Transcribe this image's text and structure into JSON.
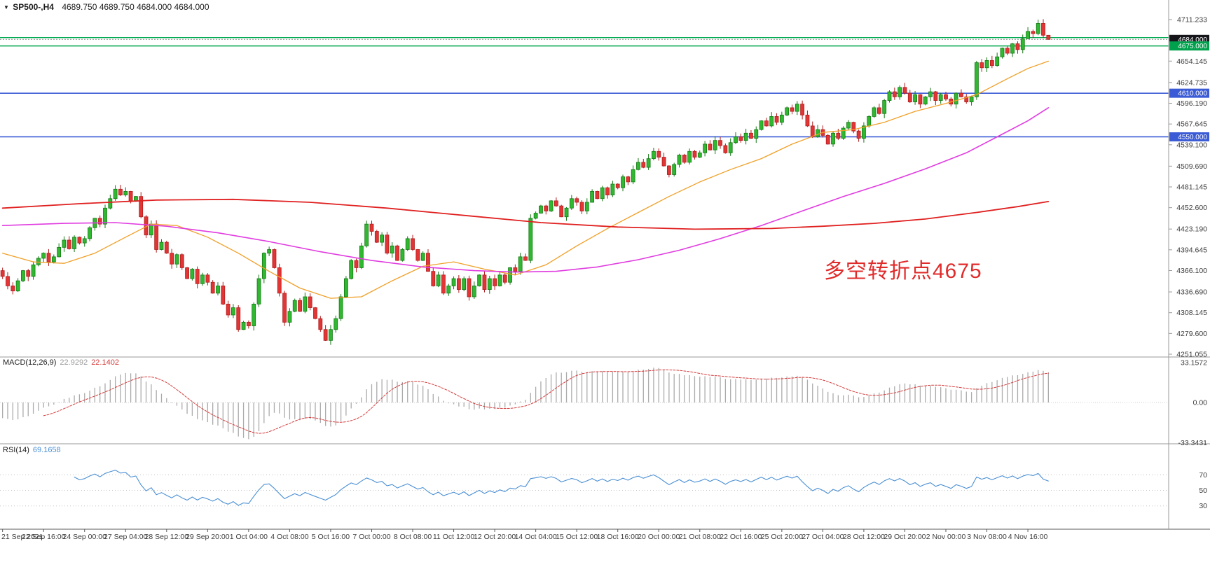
{
  "header": {
    "symbol_timeframe": "SP500-,H4",
    "ohlc_text": "4689.750 4689.750 4684.000 4684.000"
  },
  "annotation": {
    "text": "多空转折点4675",
    "color": "#e02b2b"
  },
  "chart_data": {
    "type": "candlestick",
    "symbol": "SP500-",
    "timeframe": "H4",
    "current_bar": {
      "open": 4689.75,
      "high": 4689.75,
      "low": 4684.0,
      "close": 4684.0
    },
    "price_axis": {
      "ticks": [
        4711.233,
        4654.145,
        4624.735,
        4596.19,
        4567.645,
        4539.1,
        4509.69,
        4481.145,
        4452.6,
        4423.19,
        4394.645,
        4366.1,
        4336.69,
        4308.145,
        4279.6,
        4251.055
      ],
      "y_top_price": 4711.233,
      "y_bottom_price": 4251.055
    },
    "hlines": [
      {
        "price": 4686.5,
        "color": "#00a84f",
        "width": 1.4
      },
      {
        "price": 4675.0,
        "color": "#00a84f",
        "width": 1.4
      },
      {
        "price": 4610.0,
        "color": "#3b5bd6",
        "width": 1.6
      },
      {
        "price": 4550.0,
        "color": "#3b5bd6",
        "width": 1.6
      }
    ],
    "bid_line": {
      "price": 4684.0,
      "color": "#8a8a8a"
    },
    "price_markers": [
      {
        "price": 4684.0,
        "label": "4684.000",
        "bg": "#15151a"
      },
      {
        "price": 4675.0,
        "label": "4675.000",
        "bg": "#00a04d"
      },
      {
        "price": 4610.0,
        "label": "4610.000",
        "bg": "#3b5bd6"
      },
      {
        "price": 4550.0,
        "label": "4550.000",
        "bg": "#3b5bd6"
      }
    ],
    "time_axis": {
      "label_step": 8,
      "labels": [
        "21 Sep 2021",
        "22 Sep 16:00",
        "24 Sep 00:00",
        "27 Sep 04:00",
        "28 Sep 12:00",
        "29 Sep 20:00",
        "1 Oct 04:00",
        "4 Oct 08:00",
        "5 Oct 16:00",
        "7 Oct 00:00",
        "8 Oct 08:00",
        "11 Oct 12:00",
        "12 Oct 20:00",
        "14 Oct 04:00",
        "15 Oct 12:00",
        "18 Oct 16:00",
        "20 Oct 00:00",
        "21 Oct 08:00",
        "22 Oct 16:00",
        "25 Oct 20:00",
        "27 Oct 04:00",
        "28 Oct 12:00",
        "29 Oct 20:00",
        "2 Nov 00:00",
        "3 Nov 08:00",
        "4 Nov 16:00"
      ]
    },
    "closes": [
      4358,
      4345,
      4338,
      4352,
      4366,
      4358,
      4374,
      4383,
      4390,
      4378,
      4385,
      4398,
      4408,
      4396,
      4412,
      4404,
      4410,
      4425,
      4438,
      4430,
      4452,
      4465,
      4478,
      4470,
      4475,
      4462,
      4468,
      4440,
      4415,
      4430,
      4395,
      4405,
      4390,
      4375,
      4388,
      4370,
      4355,
      4368,
      4348,
      4360,
      4350,
      4335,
      4345,
      4320,
      4305,
      4315,
      4285,
      4295,
      4290,
      4320,
      4355,
      4390,
      4395,
      4370,
      4335,
      4295,
      4310,
      4325,
      4310,
      4330,
      4315,
      4300,
      4285,
      4270,
      4285,
      4300,
      4330,
      4355,
      4380,
      4370,
      4400,
      4430,
      4420,
      4405,
      4415,
      4390,
      4400,
      4380,
      4395,
      4410,
      4395,
      4380,
      4390,
      4365,
      4345,
      4360,
      4335,
      4345,
      4355,
      4340,
      4355,
      4330,
      4345,
      4360,
      4340,
      4355,
      4345,
      4360,
      4350,
      4370,
      4365,
      4385,
      4380,
      4438,
      4445,
      4455,
      4448,
      4462,
      4455,
      4440,
      4452,
      4465,
      4460,
      4448,
      4460,
      4475,
      4465,
      4480,
      4470,
      4485,
      4480,
      4495,
      4488,
      4505,
      4515,
      4508,
      4520,
      4530,
      4522,
      4510,
      4498,
      4512,
      4525,
      4515,
      4530,
      4522,
      4528,
      4540,
      4532,
      4545,
      4538,
      4528,
      4542,
      4550,
      4545,
      4555,
      4548,
      4560,
      4572,
      4565,
      4578,
      4570,
      4580,
      4590,
      4585,
      4595,
      4580,
      4565,
      4550,
      4560,
      4552,
      4540,
      4555,
      4548,
      4562,
      4570,
      4558,
      4548,
      4565,
      4578,
      4590,
      4582,
      4600,
      4612,
      4605,
      4618,
      4610,
      4598,
      4608,
      4595,
      4605,
      4612,
      4600,
      4608,
      4602,
      4595,
      4610,
      4605,
      4598,
      4605,
      4652,
      4645,
      4655,
      4648,
      4660,
      4672,
      4665,
      4678,
      4670,
      4685,
      4695,
      4692,
      4706,
      4689.75,
      4684
    ],
    "wick_overrides": {
      "202": {
        "high": 4711.233
      },
      "204": {
        "high": 4689.75,
        "low": 4684.0
      }
    },
    "candle_colors": {
      "up_fill": "#30b830",
      "up_stroke": "#157815",
      "down_fill": "#e23535",
      "down_stroke": "#b01d1d"
    },
    "ma_lines": [
      {
        "name": "ma-fast-orange",
        "color": "#f0a028",
        "width": 1.3,
        "points": [
          [
            0,
            4390
          ],
          [
            6,
            4378
          ],
          [
            12,
            4376
          ],
          [
            18,
            4390
          ],
          [
            24,
            4412
          ],
          [
            29,
            4430
          ],
          [
            34,
            4428
          ],
          [
            40,
            4412
          ],
          [
            46,
            4390
          ],
          [
            52,
            4365
          ],
          [
            58,
            4342
          ],
          [
            64,
            4328
          ],
          [
            70,
            4330
          ],
          [
            76,
            4352
          ],
          [
            82,
            4372
          ],
          [
            88,
            4378
          ],
          [
            94,
            4368
          ],
          [
            100,
            4360
          ],
          [
            106,
            4374
          ],
          [
            112,
            4400
          ],
          [
            118,
            4424
          ],
          [
            124,
            4446
          ],
          [
            130,
            4468
          ],
          [
            136,
            4488
          ],
          [
            142,
            4505
          ],
          [
            148,
            4520
          ],
          [
            154,
            4540
          ],
          [
            160,
            4556
          ],
          [
            166,
            4560
          ],
          [
            172,
            4570
          ],
          [
            178,
            4585
          ],
          [
            184,
            4596
          ],
          [
            190,
            4608
          ],
          [
            196,
            4630
          ],
          [
            200,
            4644
          ],
          [
            204,
            4654
          ]
        ]
      },
      {
        "name": "ma-mid-magenta",
        "color": "#e03ce0",
        "width": 1.6,
        "points": [
          [
            0,
            4428
          ],
          [
            12,
            4431
          ],
          [
            22,
            4432
          ],
          [
            32,
            4427
          ],
          [
            42,
            4418
          ],
          [
            52,
            4406
          ],
          [
            62,
            4392
          ],
          [
            72,
            4380
          ],
          [
            82,
            4371
          ],
          [
            92,
            4366
          ],
          [
            100,
            4364
          ],
          [
            108,
            4365
          ],
          [
            116,
            4371
          ],
          [
            124,
            4381
          ],
          [
            132,
            4394
          ],
          [
            140,
            4410
          ],
          [
            148,
            4428
          ],
          [
            156,
            4448
          ],
          [
            164,
            4468
          ],
          [
            172,
            4486
          ],
          [
            180,
            4506
          ],
          [
            188,
            4528
          ],
          [
            194,
            4550
          ],
          [
            200,
            4572
          ],
          [
            204,
            4590
          ]
        ]
      },
      {
        "name": "ma-slow-red",
        "color": "#e02020",
        "width": 1.8,
        "points": [
          [
            0,
            4452
          ],
          [
            15,
            4458
          ],
          [
            30,
            4463
          ],
          [
            45,
            4464
          ],
          [
            60,
            4460
          ],
          [
            75,
            4452
          ],
          [
            90,
            4442
          ],
          [
            105,
            4432
          ],
          [
            120,
            4426
          ],
          [
            135,
            4423
          ],
          [
            150,
            4424
          ],
          [
            160,
            4427
          ],
          [
            170,
            4431
          ],
          [
            180,
            4437
          ],
          [
            190,
            4446
          ],
          [
            198,
            4454
          ],
          [
            204,
            4461
          ]
        ]
      }
    ],
    "macd": {
      "label": "MACD(12,26,9)",
      "main_value": "22.9292",
      "signal_value": "22.1402",
      "fast": 12,
      "slow": 26,
      "signal": 9,
      "axis_labels": [
        {
          "v": 33.1572,
          "t": "33.1572"
        },
        {
          "v": 0,
          "t": "0.00"
        },
        {
          "v": -33.3431,
          "t": "-33.3431"
        }
      ],
      "histogram_color": "#ababab",
      "signal_color": "#d43a3a"
    },
    "rsi": {
      "label": "RSI(14)",
      "value_text": "69.1658",
      "period": 14,
      "levels": [
        70,
        50,
        30
      ],
      "color": "#4a8fd4"
    }
  }
}
